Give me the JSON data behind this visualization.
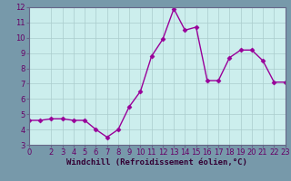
{
  "x": [
    0,
    1,
    2,
    3,
    4,
    5,
    6,
    7,
    8,
    9,
    10,
    11,
    12,
    13,
    14,
    15,
    16,
    17,
    18,
    19,
    20,
    21,
    22,
    23
  ],
  "y": [
    4.6,
    4.6,
    4.7,
    4.7,
    4.6,
    4.6,
    4.0,
    3.5,
    4.0,
    5.5,
    6.5,
    8.8,
    9.9,
    11.9,
    10.5,
    10.7,
    7.2,
    7.2,
    8.7,
    9.2,
    9.2,
    8.5,
    7.1,
    7.1
  ],
  "line_color": "#990099",
  "marker": "D",
  "markersize": 2.5,
  "linewidth": 1.0,
  "xlabel": "Windchill (Refroidissement éolien,°C)",
  "xlabel_fontsize": 6.5,
  "xlim": [
    0,
    23
  ],
  "ylim": [
    3,
    12
  ],
  "yticks": [
    3,
    4,
    5,
    6,
    7,
    8,
    9,
    10,
    11,
    12
  ],
  "xticks": [
    0,
    2,
    3,
    4,
    5,
    6,
    7,
    8,
    9,
    10,
    11,
    12,
    13,
    14,
    15,
    16,
    17,
    18,
    19,
    20,
    21,
    22,
    23
  ],
  "background_color": "#cceeed",
  "grid_color": "#aacccc",
  "tick_fontsize": 6.0,
  "fig_bg": "#7799aa",
  "spine_color": "#666688"
}
